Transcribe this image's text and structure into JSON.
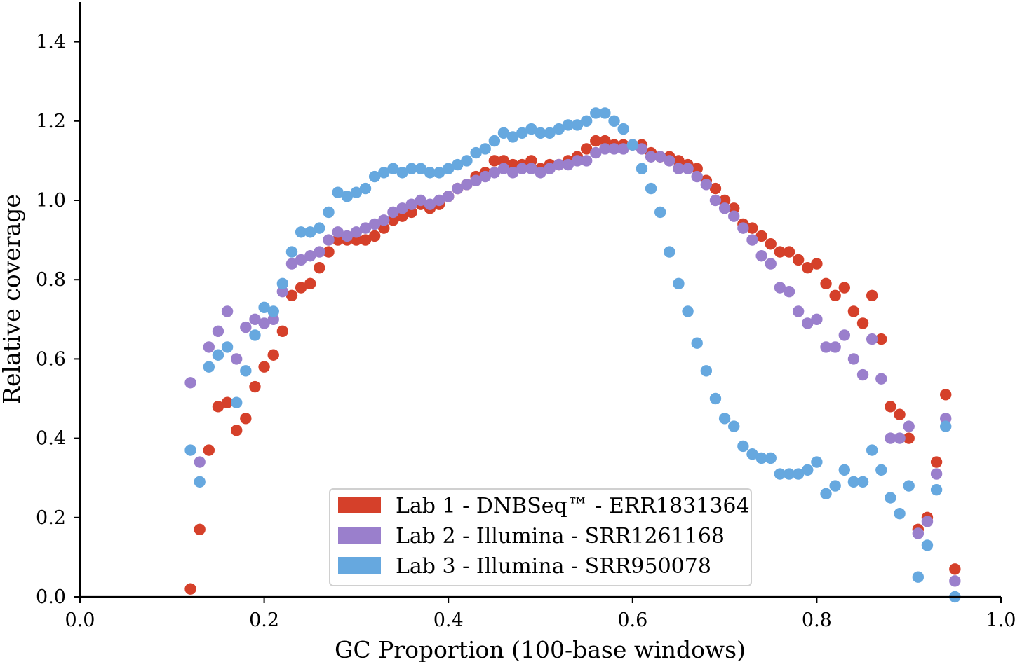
{
  "chart_data": {
    "type": "scatter",
    "title": "",
    "xlabel": "GC Proportion (100-base windows)",
    "ylabel": "Relative coverage",
    "xlim": [
      0.0,
      1.0
    ],
    "ylim": [
      0.0,
      1.5
    ],
    "xticks": [
      "0.0",
      "0.2",
      "0.4",
      "0.6",
      "0.8",
      "1.0"
    ],
    "xtick_values": [
      0.0,
      0.2,
      0.4,
      0.6,
      0.8,
      1.0
    ],
    "yticks": [
      "0.0",
      "0.2",
      "0.4",
      "0.6",
      "0.8",
      "1.0",
      "1.2",
      "1.4"
    ],
    "ytick_values": [
      0.0,
      0.2,
      0.4,
      0.6,
      0.8,
      1.0,
      1.2,
      1.4
    ],
    "grid": false,
    "legend_position": "bottom-center",
    "x": [
      0.12,
      0.13,
      0.14,
      0.15,
      0.16,
      0.17,
      0.18,
      0.19,
      0.2,
      0.21,
      0.22,
      0.23,
      0.24,
      0.25,
      0.26,
      0.27,
      0.28,
      0.29,
      0.3,
      0.31,
      0.32,
      0.33,
      0.34,
      0.35,
      0.36,
      0.37,
      0.38,
      0.39,
      0.4,
      0.41,
      0.42,
      0.43,
      0.44,
      0.45,
      0.46,
      0.47,
      0.48,
      0.49,
      0.5,
      0.51,
      0.52,
      0.53,
      0.54,
      0.55,
      0.56,
      0.57,
      0.58,
      0.59,
      0.6,
      0.61,
      0.62,
      0.63,
      0.64,
      0.65,
      0.66,
      0.67,
      0.68,
      0.69,
      0.7,
      0.71,
      0.72,
      0.73,
      0.74,
      0.75,
      0.76,
      0.77,
      0.78,
      0.79,
      0.8,
      0.81,
      0.82,
      0.83,
      0.84,
      0.85,
      0.86,
      0.87,
      0.88,
      0.89,
      0.9,
      0.91,
      0.92,
      0.93,
      0.94,
      0.95
    ],
    "series": [
      {
        "name": "Lab 1 - DNBSeq™ - ERR1831364",
        "color": "#d5402a",
        "values": [
          0.02,
          0.17,
          0.37,
          0.48,
          0.49,
          0.42,
          0.45,
          0.53,
          0.58,
          0.61,
          0.67,
          0.76,
          0.78,
          0.79,
          0.83,
          0.87,
          0.9,
          0.9,
          0.9,
          0.9,
          0.91,
          0.93,
          0.95,
          0.96,
          0.97,
          0.99,
          0.98,
          0.99,
          1.01,
          1.03,
          1.04,
          1.06,
          1.07,
          1.1,
          1.1,
          1.09,
          1.09,
          1.1,
          1.08,
          1.09,
          1.09,
          1.1,
          1.11,
          1.13,
          1.15,
          1.15,
          1.14,
          1.14,
          1.14,
          1.14,
          1.12,
          1.11,
          1.11,
          1.1,
          1.09,
          1.08,
          1.05,
          1.03,
          1.0,
          0.98,
          0.94,
          0.93,
          0.91,
          0.89,
          0.87,
          0.87,
          0.85,
          0.83,
          0.84,
          0.79,
          0.76,
          0.78,
          0.72,
          0.69,
          0.76,
          0.65,
          0.48,
          0.46,
          0.4,
          0.17,
          0.2,
          0.34,
          0.51,
          0.07
        ]
      },
      {
        "name": "Lab 2 - Illumina - SRR1261168",
        "color": "#9a7fcc",
        "values": [
          0.54,
          0.34,
          0.63,
          0.67,
          0.72,
          0.6,
          0.68,
          0.7,
          0.69,
          0.7,
          0.77,
          0.84,
          0.85,
          0.86,
          0.87,
          0.9,
          0.92,
          0.91,
          0.92,
          0.93,
          0.94,
          0.95,
          0.97,
          0.98,
          0.99,
          1.0,
          0.99,
          1.0,
          1.01,
          1.03,
          1.04,
          1.05,
          1.06,
          1.07,
          1.08,
          1.07,
          1.08,
          1.08,
          1.07,
          1.08,
          1.09,
          1.09,
          1.1,
          1.1,
          1.12,
          1.13,
          1.13,
          1.13,
          1.14,
          1.13,
          1.11,
          1.11,
          1.1,
          1.08,
          1.08,
          1.06,
          1.04,
          1.0,
          0.98,
          0.96,
          0.93,
          0.9,
          0.86,
          0.84,
          0.78,
          0.77,
          0.72,
          0.69,
          0.7,
          0.63,
          0.63,
          0.66,
          0.6,
          0.56,
          0.65,
          0.55,
          0.4,
          0.4,
          0.43,
          0.16,
          0.19,
          0.31,
          0.45,
          0.04
        ]
      },
      {
        "name": "Lab 3 - Illumina - SRR950078",
        "color": "#66a8df",
        "values": [
          0.37,
          0.29,
          0.58,
          0.61,
          0.63,
          0.49,
          0.57,
          0.66,
          0.73,
          0.72,
          0.79,
          0.87,
          0.92,
          0.92,
          0.93,
          0.97,
          1.02,
          1.01,
          1.02,
          1.03,
          1.06,
          1.07,
          1.08,
          1.07,
          1.08,
          1.08,
          1.07,
          1.07,
          1.08,
          1.09,
          1.1,
          1.12,
          1.13,
          1.15,
          1.17,
          1.16,
          1.17,
          1.18,
          1.17,
          1.17,
          1.18,
          1.19,
          1.19,
          1.2,
          1.22,
          1.22,
          1.2,
          1.18,
          1.14,
          1.08,
          1.03,
          0.97,
          0.87,
          0.79,
          0.72,
          0.64,
          0.57,
          0.5,
          0.45,
          0.43,
          0.38,
          0.36,
          0.35,
          0.35,
          0.31,
          0.31,
          0.31,
          0.32,
          0.34,
          0.26,
          0.28,
          0.32,
          0.29,
          0.29,
          0.37,
          0.32,
          0.25,
          0.21,
          0.28,
          0.05,
          0.13,
          0.27,
          0.43,
          0.0
        ]
      }
    ]
  }
}
